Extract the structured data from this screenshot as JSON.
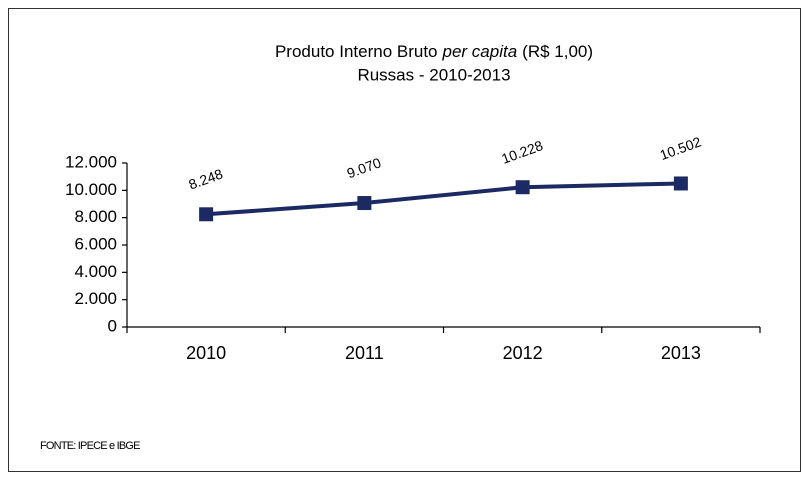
{
  "chart_data": {
    "type": "line",
    "title": {
      "before": "Produto Interno Bruto",
      "italic": "per capita",
      "after": "(R$ 1,00)"
    },
    "subtitle": "Russas - 2010-2013",
    "categories": [
      "2010",
      "2011",
      "2012",
      "2013"
    ],
    "series": [
      {
        "color": "#1c2a63",
        "values": [
          8248,
          9070,
          10228,
          10502
        ],
        "value_labels": [
          "8.248",
          "9.070",
          "10.228",
          "10.502"
        ]
      }
    ],
    "ylim": [
      0,
      12000
    ],
    "yticks": [
      0,
      {
        "value": 2000,
        "label": "2.000"
      },
      {
        "value": 4000,
        "label": "4.000"
      },
      {
        "value": 6000,
        "label": "6.000"
      },
      {
        "value": 8000,
        "label": "8.000"
      },
      {
        "value": 10000,
        "label": "10.000"
      },
      {
        "value": 12000,
        "label": "12.000"
      }
    ],
    "source": "FONTE: IPECE e IBGE"
  }
}
